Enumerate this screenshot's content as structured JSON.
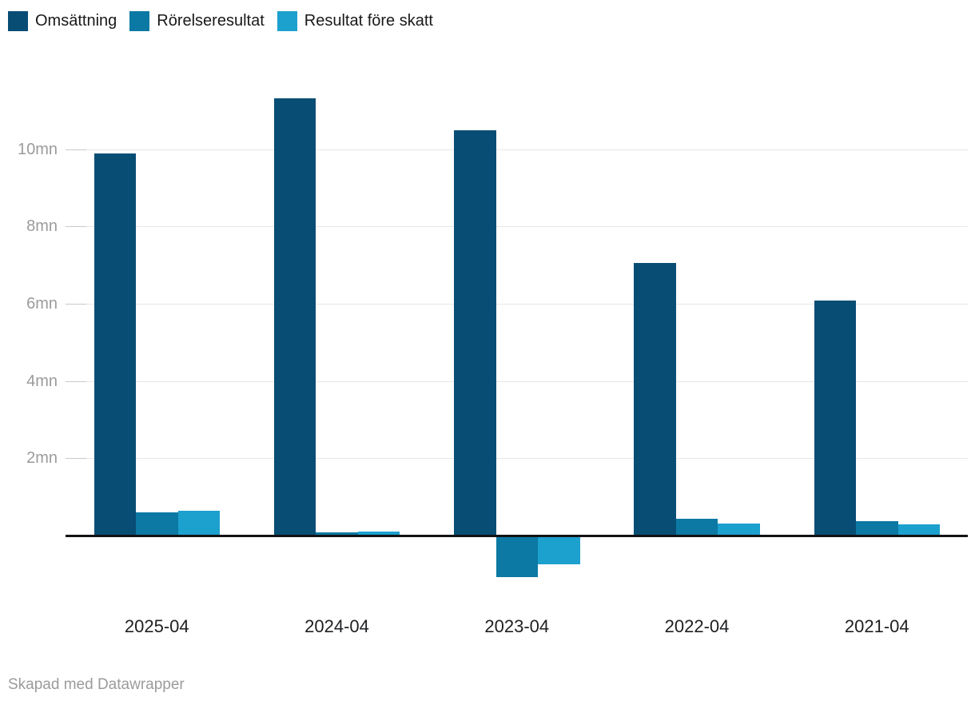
{
  "legend": {
    "items": [
      {
        "label": "Omsättning",
        "color": "#084d74"
      },
      {
        "label": "Rörelseresultat",
        "color": "#0b79a3"
      },
      {
        "label": "Resultat före skatt",
        "color": "#1ca0ce"
      }
    ]
  },
  "footer": {
    "credit": "Skapad med Datawrapper"
  },
  "chart_data": {
    "type": "bar",
    "categories": [
      "2025-04",
      "2024-04",
      "2023-04",
      "2022-04",
      "2021-04"
    ],
    "series": [
      {
        "name": "Omsättning",
        "color": "#084d74",
        "values": [
          9.9,
          11.32,
          10.5,
          7.05,
          6.08
        ]
      },
      {
        "name": "Rörelseresultat",
        "color": "#0b79a3",
        "values": [
          0.61,
          0.09,
          -1.08,
          0.43,
          0.38
        ]
      },
      {
        "name": "Resultat före skatt",
        "color": "#1ca0ce",
        "values": [
          0.64,
          0.1,
          -0.74,
          0.31,
          0.29
        ]
      }
    ],
    "yticks": [
      {
        "value": 2,
        "label": "2mn"
      },
      {
        "value": 4,
        "label": "4mn"
      },
      {
        "value": 6,
        "label": "6mn"
      },
      {
        "value": 8,
        "label": "8mn"
      },
      {
        "value": 10,
        "label": "10mn"
      }
    ],
    "unit": "mn",
    "ylim": [
      -1.5,
      11.8
    ],
    "grid": true,
    "legend_position": "top-left",
    "title": "",
    "xlabel": "",
    "ylabel": ""
  }
}
